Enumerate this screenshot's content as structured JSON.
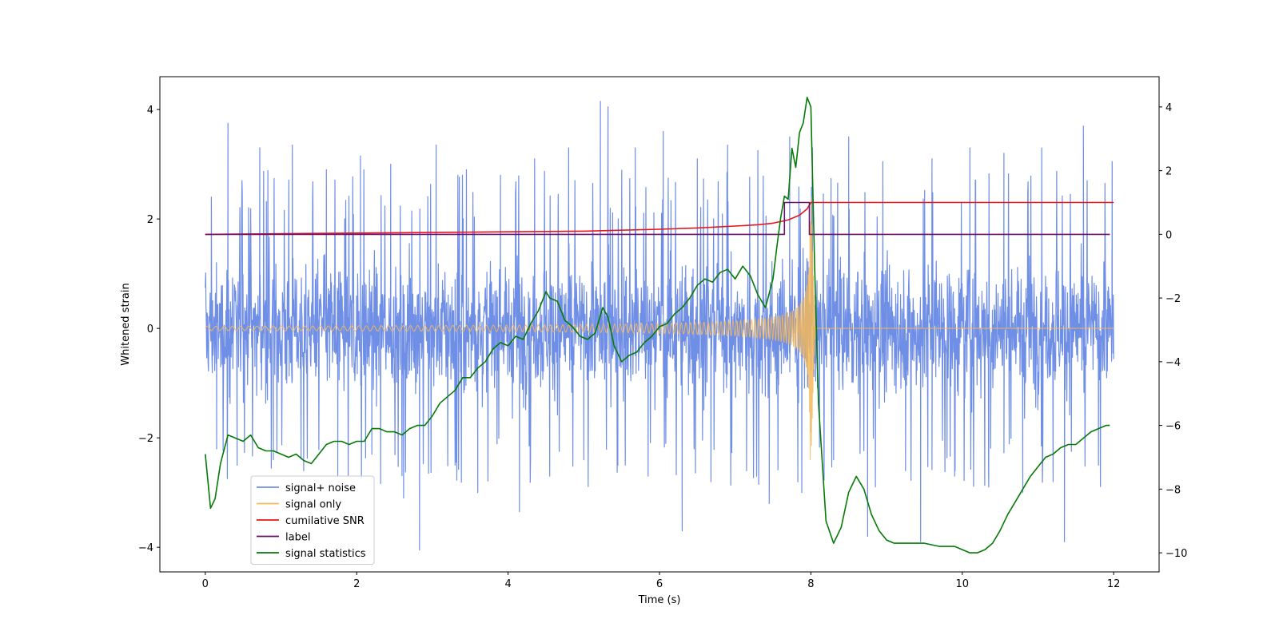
{
  "chart_data": {
    "type": "line",
    "xlabel": "Time (s)",
    "ylabel": "Whitened strain",
    "xlim": [
      -0.6,
      12.6
    ],
    "ylim": [
      -4.45,
      4.6
    ],
    "y2lim": [
      -10.6,
      4.95
    ],
    "x_ticks": [
      0,
      2,
      4,
      6,
      8,
      10,
      12
    ],
    "y_ticks": [
      -4,
      -2,
      0,
      2,
      4
    ],
    "y2_ticks": [
      -10,
      -8,
      -6,
      -4,
      -2,
      0,
      2,
      4
    ],
    "legend_position": "lower-left",
    "series": [
      {
        "name": "signal+ noise",
        "color": "#6f8ee6",
        "axis": "left",
        "description_values": {
          "t_start": 0.0,
          "t_end": 12.0,
          "core_band": [
            -1.6,
            1.6
          ],
          "spike_points": [
            [
              0.08,
              2.4
            ],
            [
              0.15,
              -2.2
            ],
            [
              0.3,
              3.75
            ],
            [
              0.42,
              -2.5
            ],
            [
              0.72,
              3.3
            ],
            [
              0.9,
              -2.4
            ],
            [
              1.15,
              3.35
            ],
            [
              1.3,
              -2.6
            ],
            [
              1.6,
              2.9
            ],
            [
              1.75,
              -2.7
            ],
            [
              2.05,
              3.15
            ],
            [
              2.2,
              -2.3
            ],
            [
              2.45,
              3.0
            ],
            [
              2.62,
              -3.1
            ],
            [
              2.83,
              -4.05
            ],
            [
              3.05,
              3.35
            ],
            [
              3.3,
              -2.5
            ],
            [
              3.45,
              2.9
            ],
            [
              3.6,
              -3.0
            ],
            [
              3.9,
              2.8
            ],
            [
              4.15,
              -3.35
            ],
            [
              4.35,
              3.1
            ],
            [
              4.55,
              -2.7
            ],
            [
              4.8,
              3.3
            ],
            [
              5.0,
              -2.4
            ],
            [
              5.22,
              4.15
            ],
            [
              5.32,
              4.05
            ],
            [
              5.45,
              -2.5
            ],
            [
              5.68,
              3.3
            ],
            [
              5.85,
              -2.7
            ],
            [
              6.05,
              3.6
            ],
            [
              6.3,
              -3.7
            ],
            [
              6.5,
              3.1
            ],
            [
              6.68,
              -2.8
            ],
            [
              6.9,
              3.35
            ],
            [
              7.15,
              -2.6
            ],
            [
              7.3,
              3.25
            ],
            [
              7.45,
              -3.2
            ],
            [
              7.72,
              3.5
            ],
            [
              7.88,
              -3.0
            ],
            [
              8.02,
              3.3
            ],
            [
              8.3,
              -2.4
            ],
            [
              8.5,
              3.5
            ],
            [
              8.75,
              -3.8
            ],
            [
              8.95,
              3.05
            ],
            [
              9.25,
              -2.6
            ],
            [
              9.45,
              -3.9
            ],
            [
              9.6,
              3.1
            ],
            [
              9.9,
              -2.7
            ],
            [
              10.1,
              3.3
            ],
            [
              10.35,
              -2.9
            ],
            [
              10.55,
              3.2
            ],
            [
              10.8,
              -3.0
            ],
            [
              11.05,
              3.3
            ],
            [
              11.2,
              -2.8
            ],
            [
              11.35,
              -3.9
            ],
            [
              11.6,
              3.7
            ],
            [
              11.8,
              -2.5
            ],
            [
              11.98,
              3.05
            ]
          ]
        }
      },
      {
        "name": "signal only",
        "color": "#f5b85a",
        "axis": "left",
        "chirp": {
          "t_start": 0.0,
          "t_merge": 8.0,
          "t_end": 12.0,
          "initial_amplitude": 0.04,
          "peak_amplitude": 2.7
        }
      },
      {
        "name": "cumilative SNR",
        "color": "#e8141c",
        "axis": "right",
        "x": [
          0.0,
          2.0,
          4.0,
          5.0,
          6.0,
          6.5,
          7.0,
          7.3,
          7.5,
          7.7,
          7.85,
          7.95,
          8.0,
          8.02,
          12.0
        ],
        "y": [
          0.0,
          0.04,
          0.08,
          0.1,
          0.16,
          0.2,
          0.26,
          0.3,
          0.35,
          0.45,
          0.6,
          0.8,
          1.0,
          1.0,
          1.0
        ]
      },
      {
        "name": "label",
        "color": "#6a0f6e",
        "axis": "right",
        "x": [
          0.0,
          7.65,
          7.65,
          7.98,
          7.98,
          11.95
        ],
        "y": [
          0.0,
          0.0,
          1.0,
          1.0,
          0.0,
          0.0
        ]
      },
      {
        "name": "signal statistics",
        "color": "#067a06",
        "axis": "right",
        "x": [
          0.0,
          0.07,
          0.13,
          0.2,
          0.3,
          0.4,
          0.5,
          0.55,
          0.6,
          0.7,
          0.8,
          0.9,
          1.0,
          1.1,
          1.2,
          1.3,
          1.4,
          1.5,
          1.6,
          1.7,
          1.8,
          1.9,
          2.0,
          2.1,
          2.2,
          2.3,
          2.4,
          2.5,
          2.6,
          2.7,
          2.8,
          2.9,
          3.0,
          3.1,
          3.2,
          3.3,
          3.4,
          3.5,
          3.6,
          3.7,
          3.8,
          3.9,
          4.0,
          4.1,
          4.2,
          4.3,
          4.4,
          4.5,
          4.55,
          4.65,
          4.75,
          4.85,
          4.95,
          5.05,
          5.15,
          5.25,
          5.32,
          5.4,
          5.5,
          5.6,
          5.7,
          5.8,
          5.9,
          6.0,
          6.1,
          6.2,
          6.3,
          6.4,
          6.5,
          6.6,
          6.7,
          6.8,
          6.9,
          7.0,
          7.1,
          7.2,
          7.3,
          7.4,
          7.5,
          7.55,
          7.6,
          7.65,
          7.7,
          7.75,
          7.8,
          7.85,
          7.9,
          7.95,
          8.0,
          8.05,
          8.1,
          8.2,
          8.3,
          8.4,
          8.5,
          8.6,
          8.7,
          8.8,
          8.9,
          9.0,
          9.1,
          9.3,
          9.5,
          9.7,
          9.8,
          9.9,
          10.0,
          10.1,
          10.2,
          10.3,
          10.4,
          10.5,
          10.6,
          10.7,
          10.8,
          10.9,
          11.0,
          11.1,
          11.2,
          11.3,
          11.4,
          11.5,
          11.6,
          11.7,
          11.8,
          11.9,
          11.95
        ],
        "y": [
          -6.9,
          -8.6,
          -8.3,
          -7.2,
          -6.3,
          -6.4,
          -6.5,
          -6.4,
          -6.3,
          -6.7,
          -6.8,
          -6.8,
          -6.9,
          -7.0,
          -6.9,
          -7.1,
          -7.2,
          -6.9,
          -6.6,
          -6.5,
          -6.5,
          -6.6,
          -6.5,
          -6.5,
          -6.1,
          -6.1,
          -6.2,
          -6.2,
          -6.3,
          -6.1,
          -6.0,
          -6.0,
          -5.7,
          -5.3,
          -5.1,
          -4.9,
          -4.5,
          -4.5,
          -4.2,
          -4.0,
          -3.6,
          -3.4,
          -3.5,
          -3.2,
          -3.3,
          -2.8,
          -2.4,
          -1.8,
          -2.0,
          -2.1,
          -2.7,
          -2.9,
          -3.2,
          -3.3,
          -3.1,
          -2.3,
          -2.6,
          -3.5,
          -4.0,
          -3.8,
          -3.7,
          -3.4,
          -3.2,
          -2.9,
          -2.8,
          -2.5,
          -2.3,
          -2.0,
          -1.6,
          -1.4,
          -1.5,
          -1.2,
          -1.1,
          -1.4,
          -1.0,
          -1.3,
          -1.9,
          -2.3,
          -1.4,
          -0.4,
          0.5,
          1.2,
          1.1,
          2.7,
          2.1,
          3.2,
          3.5,
          4.3,
          4.0,
          -1.0,
          -5.3,
          -9.0,
          -9.7,
          -9.2,
          -8.1,
          -7.6,
          -8.0,
          -8.8,
          -9.3,
          -9.6,
          -9.7,
          -9.7,
          -9.7,
          -9.8,
          -9.8,
          -9.8,
          -9.9,
          -10.0,
          -10.0,
          -9.9,
          -9.7,
          -9.3,
          -8.8,
          -8.4,
          -8.0,
          -7.6,
          -7.3,
          -7.0,
          -6.9,
          -6.7,
          -6.6,
          -6.6,
          -6.4,
          -6.2,
          -6.1,
          -6.0,
          -6.0
        ]
      }
    ]
  }
}
